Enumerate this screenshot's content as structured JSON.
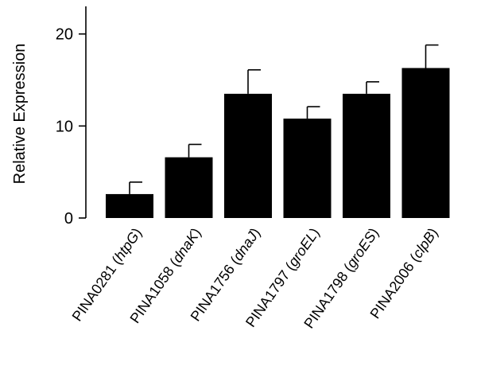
{
  "chart_data": {
    "type": "bar",
    "title": "",
    "xlabel": "",
    "ylabel": "Relative Expression",
    "ylim": [
      0,
      23
    ],
    "yticks": [
      0,
      10,
      20
    ],
    "grid": false,
    "categories": [
      {
        "id": "PINA0281",
        "gene": "htpG"
      },
      {
        "id": "PINA1058",
        "gene": "dnaK"
      },
      {
        "id": "PINA1756",
        "gene": "dnaJ"
      },
      {
        "id": "PINA1797",
        "gene": "groEL"
      },
      {
        "id": "PINA1798",
        "gene": "groES"
      },
      {
        "id": "PINA2006",
        "gene": "clpB"
      }
    ],
    "values": [
      2.6,
      6.6,
      13.5,
      10.8,
      13.5,
      16.3
    ],
    "error_upper": [
      1.3,
      1.4,
      2.6,
      1.3,
      1.3,
      2.5
    ]
  }
}
